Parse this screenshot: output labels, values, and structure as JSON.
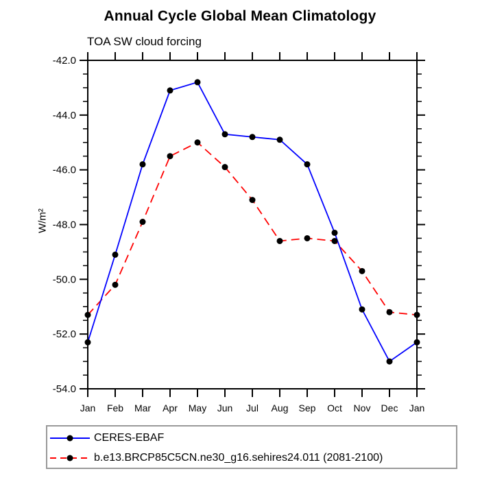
{
  "title": "Annual Cycle Global Mean Climatology",
  "subtitle": "TOA SW cloud forcing",
  "ylabel": "W/m²",
  "colors": {
    "series1": "#0000ff",
    "series2": "#ff0000",
    "marker": "#000000",
    "axis": "#000000",
    "legend_border": "#999999",
    "text": "#000000",
    "background": "#ffffff"
  },
  "chart_data": {
    "type": "line",
    "title": "Annual Cycle Global Mean Climatology",
    "subtitle": "TOA SW cloud forcing",
    "xlabel": "",
    "ylabel": "W/m²",
    "categories": [
      "Jan",
      "Feb",
      "Mar",
      "Apr",
      "May",
      "Jun",
      "Jul",
      "Aug",
      "Sep",
      "Oct",
      "Nov",
      "Dec",
      "Jan"
    ],
    "series": [
      {
        "name": "CERES-EBAF",
        "color": "#0000ff",
        "line_style": "solid",
        "marker": "filled-black-circle",
        "values": [
          -52.3,
          -49.1,
          -45.8,
          -43.1,
          -42.8,
          -44.7,
          -44.8,
          -44.9,
          -45.8,
          -48.3,
          -51.1,
          -53.0,
          -52.3
        ]
      },
      {
        "name": "b.e13.BRCP85C5CN.ne30_g16.sehires24.011 (2081-2100)",
        "color": "#ff0000",
        "line_style": "dashed",
        "marker": "filled-black-circle",
        "values": [
          -51.3,
          -50.2,
          -47.9,
          -45.5,
          -45.0,
          -45.9,
          -47.1,
          -48.6,
          -48.5,
          -48.6,
          -49.7,
          -51.2,
          -51.3
        ]
      }
    ],
    "ylim": [
      -54.0,
      -42.0
    ],
    "ytick_labels": [
      "-42.0",
      "-44.0",
      "-46.0",
      "-48.0",
      "-50.0",
      "-52.0",
      "-54.0"
    ],
    "ytick_major_interval": 2.0,
    "ytick_minor_interval": 0.5,
    "grid": false,
    "legend_position": "bottom-left-boxed"
  }
}
